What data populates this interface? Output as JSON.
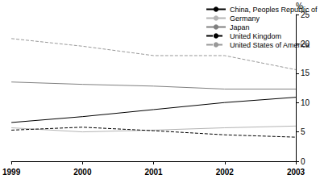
{
  "chart_data": {
    "type": "line",
    "y_label": "%",
    "categories": [
      "1999",
      "2000",
      "2001",
      "2002",
      "2003"
    ],
    "series": [
      {
        "name": "China, Peoples Republic of",
        "color": "#000000",
        "line_style": "solid",
        "values": [
          6.6,
          7.6,
          8.8,
          10.0,
          10.9
        ]
      },
      {
        "name": "Germany",
        "color": "#b4b4b4",
        "line_style": "solid",
        "values": [
          5.7,
          5.0,
          5.3,
          5.7,
          6.0
        ]
      },
      {
        "name": "Japan",
        "color": "#808080",
        "line_style": "solid",
        "values": [
          13.5,
          13.1,
          12.8,
          12.3,
          12.3
        ]
      },
      {
        "name": "United Kingdom",
        "color": "#000000",
        "line_style": "dashed",
        "values": [
          5.3,
          5.8,
          5.2,
          4.5,
          4.1
        ]
      },
      {
        "name": "United States of America",
        "color": "#999999",
        "line_style": "dashed",
        "values": [
          20.9,
          19.6,
          18.0,
          18.0,
          15.6
        ]
      }
    ],
    "ylim": [
      0,
      25
    ],
    "yticks": [
      0,
      5,
      10,
      15,
      20,
      25
    ],
    "grid": false,
    "legend": "top right"
  }
}
